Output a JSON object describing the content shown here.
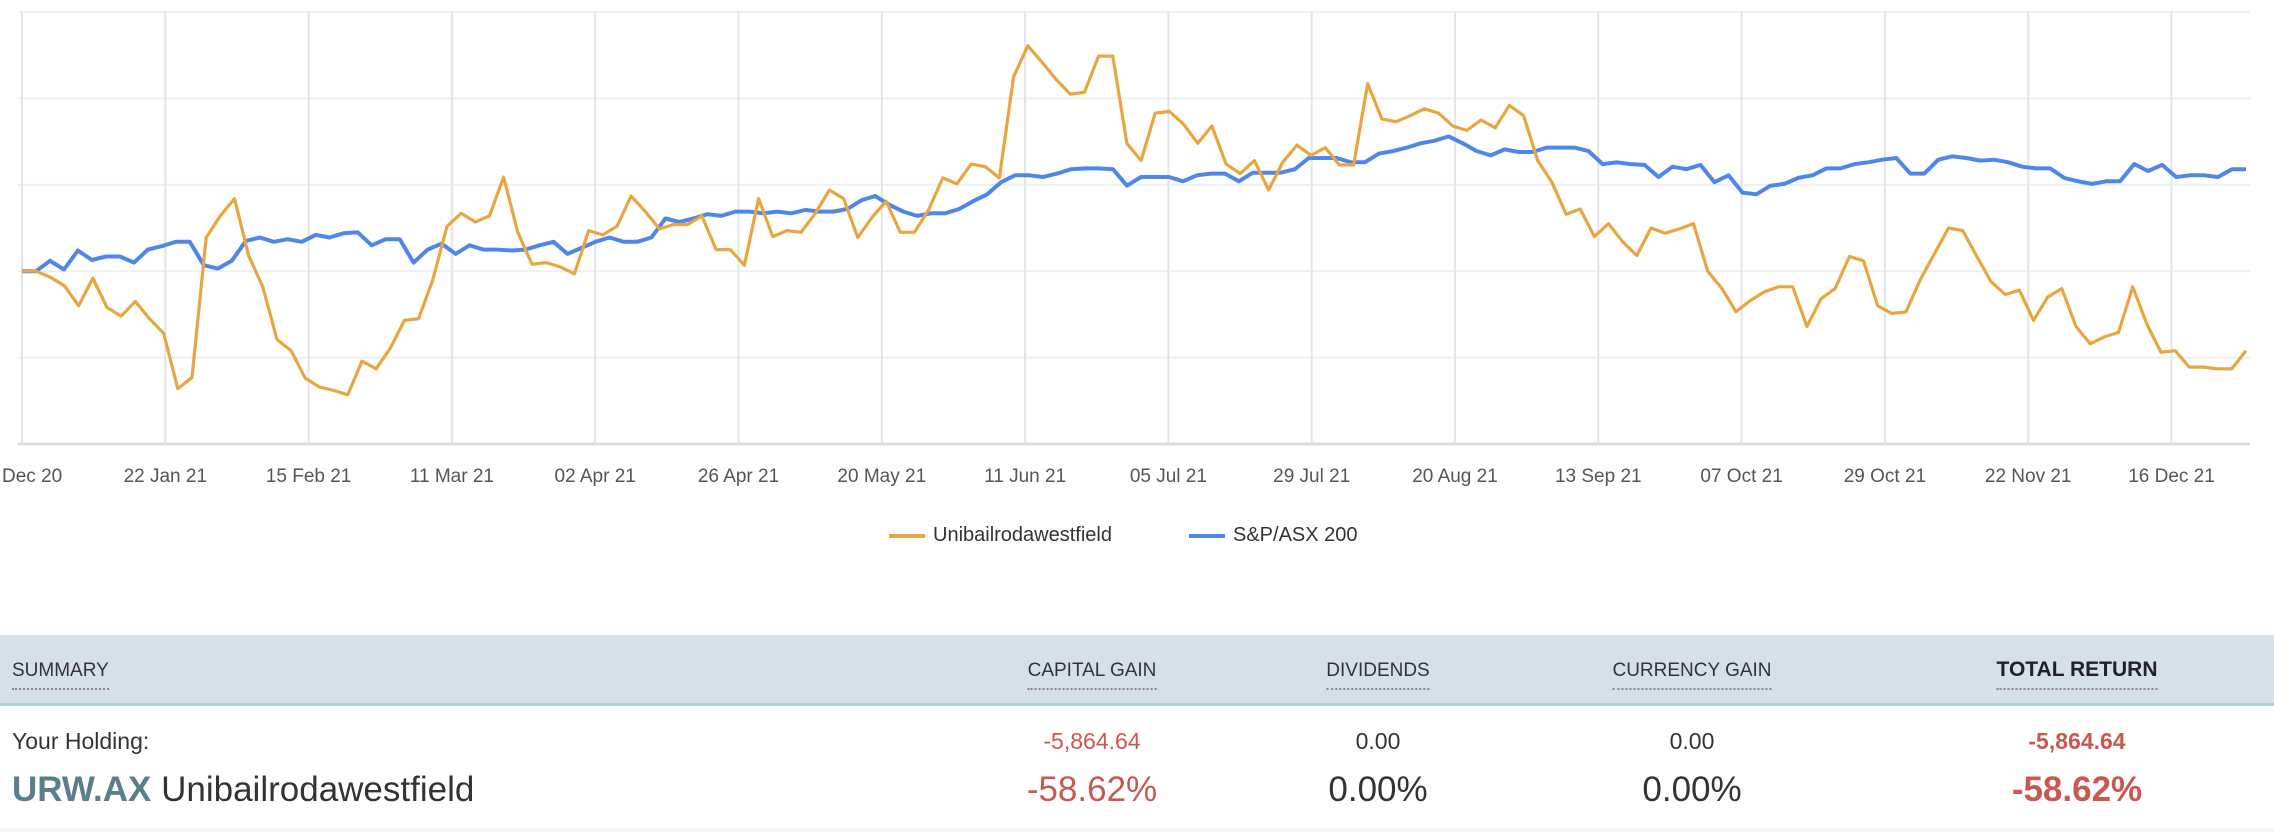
{
  "chart_data": {
    "type": "line",
    "title": "",
    "xlabel": "",
    "ylabel": "",
    "ylim": [
      -20,
      30
    ],
    "grid": true,
    "y_gridlines": [
      -20,
      -10,
      0,
      10,
      20,
      30
    ],
    "x_tick_labels": [
      "Dec 20",
      "22 Jan 21",
      "15 Feb 21",
      "11 Mar 21",
      "02 Apr 21",
      "26 Apr 21",
      "20 May 21",
      "11 Jun 21",
      "05 Jul 21",
      "29 Jul 21",
      "20 Aug 21",
      "13 Sep 21",
      "07 Oct 21",
      "29 Oct 21",
      "22 Nov 21",
      "16 Dec 21"
    ],
    "legend_position": "bottom-center",
    "series": [
      {
        "name": "Unibailrodawestfield",
        "color": "#e8a640",
        "values": [
          0,
          0,
          -0.7,
          -1.7,
          -4.0,
          -0.8,
          -4.2,
          -5.2,
          -3.5,
          -5.5,
          -7.2,
          -13.6,
          -12.3,
          3.9,
          6.4,
          8.4,
          1.8,
          -1.8,
          -7.9,
          -9.2,
          -12.4,
          -13.4,
          -13.8,
          -14.3,
          -10.4,
          -11.3,
          -8.9,
          -5.7,
          -5.5,
          -1.0,
          5.2,
          6.7,
          5.7,
          6.4,
          10.9,
          4.5,
          0.8,
          1.0,
          0.5,
          -0.3,
          4.7,
          4.2,
          5.2,
          8.7,
          6.9,
          4.9,
          5.4,
          5.4,
          6.4,
          2.5,
          2.5,
          0.7,
          8.4,
          4.0,
          4.7,
          4.5,
          6.7,
          9.4,
          8.4,
          3.9,
          6.2,
          8.1,
          4.5,
          4.5,
          7.1,
          10.8,
          10.1,
          12.4,
          12.1,
          10.8,
          22.5,
          26.1,
          24.2,
          22.2,
          20.5,
          20.7,
          24.9,
          24.9,
          14.8,
          12.8,
          18.3,
          18.5,
          17.0,
          14.8,
          16.8,
          12.4,
          11.3,
          12.8,
          9.4,
          12.6,
          14.6,
          13.4,
          14.3,
          12.3,
          12.3,
          21.7,
          17.6,
          17.3,
          18.0,
          18.8,
          18.3,
          16.8,
          16.3,
          17.5,
          16.6,
          19.2,
          18.0,
          12.8,
          10.3,
          6.6,
          7.2,
          4.0,
          5.5,
          3.4,
          1.8,
          5.0,
          4.4,
          4.9,
          5.5,
          0,
          -2.0,
          -4.7,
          -3.4,
          -2.4,
          -1.8,
          -1.8,
          -6.4,
          -3.2,
          -2.0,
          1.7,
          1.2,
          -4.0,
          -4.9,
          -4.7,
          -1.0,
          2.0,
          5.0,
          4.7,
          1.7,
          -1.2,
          -2.7,
          -2.2,
          -5.7,
          -3.0,
          -2.0,
          -6.4,
          -8.4,
          -7.6,
          -7.1,
          -1.8,
          -6.1,
          -9.4,
          -9.2,
          -11.1,
          -11.1,
          -11.3,
          -11.3,
          -9.2
        ]
      },
      {
        "name": "S&P/ASX 200",
        "color": "#4f86ec",
        "values": [
          0,
          0,
          1.2,
          0.2,
          2.4,
          1.3,
          1.7,
          1.7,
          1.0,
          2.5,
          2.9,
          3.4,
          3.4,
          0.7,
          0.3,
          1.2,
          3.5,
          3.9,
          3.4,
          3.7,
          3.4,
          4.2,
          3.9,
          4.4,
          4.5,
          3.0,
          3.7,
          3.7,
          1.0,
          2.5,
          3.2,
          2.0,
          3.0,
          2.5,
          2.5,
          2.4,
          2.5,
          3.0,
          3.4,
          2.0,
          2.7,
          3.4,
          3.9,
          3.4,
          3.4,
          3.9,
          6.1,
          5.7,
          6.1,
          6.6,
          6.4,
          6.9,
          6.9,
          6.7,
          6.9,
          6.7,
          7.1,
          6.9,
          6.9,
          7.2,
          8.2,
          8.7,
          7.7,
          6.9,
          6.4,
          6.7,
          6.7,
          7.2,
          8.1,
          8.9,
          10.3,
          11.1,
          11.1,
          10.9,
          11.3,
          11.8,
          11.9,
          11.9,
          11.8,
          9.9,
          10.9,
          10.9,
          10.9,
          10.4,
          11.1,
          11.3,
          11.3,
          10.4,
          11.4,
          11.4,
          11.4,
          11.8,
          13.1,
          13.1,
          13.1,
          12.6,
          12.6,
          13.6,
          13.9,
          14.3,
          14.8,
          15.1,
          15.6,
          14.8,
          13.9,
          13.4,
          14.1,
          13.8,
          13.8,
          14.3,
          14.3,
          14.3,
          13.9,
          12.4,
          12.6,
          12.4,
          12.3,
          10.9,
          12.1,
          11.8,
          12.3,
          10.3,
          11.1,
          9.1,
          8.9,
          9.9,
          10.1,
          10.8,
          11.1,
          11.9,
          11.9,
          12.4,
          12.6,
          12.9,
          13.1,
          11.3,
          11.3,
          12.9,
          13.3,
          13.1,
          12.8,
          12.9,
          12.6,
          12.1,
          11.9,
          11.9,
          10.8,
          10.4,
          10.1,
          10.4,
          10.4,
          12.4,
          11.6,
          12.3,
          10.9,
          11.1,
          11.1,
          10.9,
          11.8,
          11.8
        ]
      }
    ]
  },
  "summary": {
    "headers": {
      "summary": "SUMMARY",
      "capital_gain": "CAPITAL GAIN",
      "dividends": "DIVIDENDS",
      "currency_gain": "CURRENCY GAIN",
      "total_return": "TOTAL RETURN"
    },
    "holding_label": "Your Holding:",
    "ticker": "URW.AX",
    "company": "Unibailrodawestfield",
    "capital_gain_amount": "-5,864.64",
    "capital_gain_pct": "-58.62%",
    "dividends_amount": "0.00",
    "dividends_pct": "0.00%",
    "currency_gain_amount": "0.00",
    "currency_gain_pct": "0.00%",
    "total_return_amount": "-5,864.64",
    "total_return_pct": "-58.62%"
  }
}
